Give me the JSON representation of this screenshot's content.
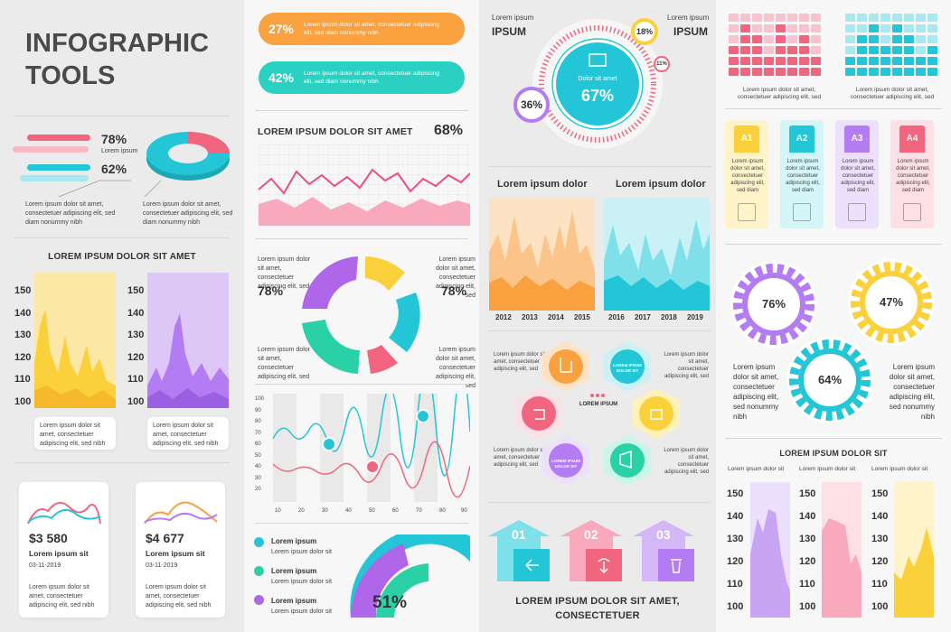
{
  "col1": {
    "title_line1": "INFOGRAPHIC",
    "title_line2": "TOOLS",
    "pct_a": "78%",
    "pct_a_caption": "Lorem ipsum",
    "pct_b": "62%",
    "note_left": "Lorem ipsum dolor sit amet, consectetuer adipiscing elit, sed diam nonummy nibh",
    "note_right": "Lorem ipsum dolor sit amet, consectetuer adipiscing elit, sed diam nonummy nibh",
    "section_title": "LOREM IPSUM DOLOR SIT AMET",
    "yticks": [
      "150",
      "140",
      "130",
      "120",
      "110",
      "100"
    ],
    "chart_note_left": "Lorem ipsum dolor sit amet, consectetuer adipiscing elit, sed nibh",
    "chart_note_right": "Lorem ipsum dolor sit amet, consectetuer adipiscing elit, sed nibh",
    "cards": [
      {
        "value": "$3 580",
        "label": "Lorem ipsum sit",
        "date": "03-11-2019",
        "text": "Lorem ipsum dolor sit amet, consectetuer adipiscing elit, sed nibh"
      },
      {
        "value": "$4 677",
        "label": "Lorem ipsum sit",
        "date": "03-11-2019",
        "text": "Lorem ipsum dolor sit amet, consectetuer adipiscing elit, sed nibh"
      }
    ],
    "colors": {
      "pink": "#f2657f",
      "cyan": "#23c6d6",
      "yellow": "#fbd13b",
      "purple": "#b47cf2"
    }
  },
  "col2": {
    "pills": [
      {
        "pct": "27%",
        "text": "Lorem ipsum dolor sit amet, consectetuer adipiscing elit, sed diam nonummy nibh",
        "color": "#f9a03f"
      },
      {
        "pct": "42%",
        "text": "Lorem ipsum dolor sit amet, consectetuer adipiscing elit, sed diam nonummy nibh",
        "color": "#2ad1c3"
      }
    ],
    "section_title": "LOREM IPSUM DOLOR SIT AMET",
    "section_pct": "68%",
    "donut_left_pct": "78%",
    "donut_right_pct": "78%",
    "donut_tl": "Lorem ipsum dolor sit amet, consectetuer adipiscing elit, sed",
    "donut_tr": "Lorem ipsum dolor sit amet, consectetuer adipiscing elit, sed",
    "donut_bl": "Lorem ipsum dolor sit amet, consectetuer adipiscing elit, sed",
    "donut_br": "Lorem ipsum dolor sit amet, consectetuer adipiscing elit, sed",
    "line_yticks": [
      "100",
      "90",
      "80",
      "70",
      "60",
      "50",
      "40",
      "30",
      "20"
    ],
    "line_xticks": [
      "10",
      "20",
      "30",
      "40",
      "50",
      "60",
      "70",
      "80",
      "90"
    ],
    "legend": [
      {
        "title": "Lorem ipsum",
        "sub": "Lorem ipsum dolor sit",
        "color": "#23c6d6"
      },
      {
        "title": "Lorem ipsum",
        "sub": "Lorem ipsum dolor sit",
        "color": "#2ad1a6"
      },
      {
        "title": "Lorem ipsum",
        "sub": "Lorem ipsum dolor sit",
        "color": "#b066e8"
      }
    ],
    "gauge_pct": "51%"
  },
  "col3": {
    "left_label_top": "Lorem ipsum",
    "left_label_main": "IPSUM",
    "right_label_top": "Lorem ipsum",
    "right_label_main": "IPSUM",
    "center_caption": "Dolor sit amet",
    "center_pct": "67%",
    "bubble_a": "18%",
    "bubble_b": "11%",
    "bubble_c": "36%",
    "area_left_title": "Lorem ipsum dolor",
    "area_right_title": "Lorem ipsum dolor",
    "area_left_years": [
      "2012",
      "2013",
      "2014",
      "2015"
    ],
    "area_right_years": [
      "2016",
      "2017",
      "2018",
      "2019"
    ],
    "hex_center": "LOREM IPSUM",
    "hex_small_a": "LOREM IPSUM DOLOR SIT",
    "hex_small_b": "LOREM IPSUM DOLOR SIT",
    "hex_notes": [
      "Lorem ipsum dolor sit amet, consectetuer adipiscing elit, sed",
      "Lorem ipsum dolor sit amet, consectetuer adipiscing elit, sed",
      "Lorem ipsum dolor sit amet, consectetuer adipiscing elit, sed",
      "Lorem ipsum dolor sit amet, consectetuer adipiscing elit, sed"
    ],
    "arrows": [
      "01",
      "02",
      "03"
    ],
    "footer_line1": "LOREM IPSUM DOLOR SIT AMET,",
    "footer_line2": "CONSECTETUER"
  },
  "col4": {
    "bar_note_left": "Lorem ipsum dolor sit amet, consectetuer adipiscing elit, sed",
    "bar_note_right": "Lorem ipsum dolor sit amet, consectetuer adipiscing elit, sed",
    "badges": [
      {
        "tag": "A1",
        "text": "Lorem ipsum dolor sit amet, consectetuer adipiscing elit, sed diam",
        "color": "#fbd13b",
        "bg": "#fff4c9"
      },
      {
        "tag": "A2",
        "text": "Lorem ipsum dolor sit amet, consectetuer adipiscing elit, sed diam",
        "color": "#23c6d6",
        "bg": "#d4f6f8"
      },
      {
        "tag": "A3",
        "text": "Lorem ipsum dolor sit amet, consectetuer adipiscing elit, sed diam",
        "color": "#b47cf2",
        "bg": "#ece0fc"
      },
      {
        "tag": "A4",
        "text": "Lorem ipsum dolor sit amet, consectetuer adipiscing elit, sed diam",
        "color": "#f2657f",
        "bg": "#fde0e6"
      }
    ],
    "gear_a": "76%",
    "gear_b": "47%",
    "gear_c": "64%",
    "gear_note_left": "Lorem ipsum dolor sit amet, consectetuer adipiscing elit, sed nonummy nibh",
    "gear_note_right": "Lorem ipsum dolor sit amet, consectetuer adipiscing elit, sed nonummy nibh",
    "section_title": "LOREM IPSUM DOLOR SIT",
    "mini_labels": [
      "Lorem ipsum dolor sit",
      "Lorem ipsum dolor sit",
      "Lorem ipsum dolor sit"
    ],
    "yticks": [
      "150",
      "140",
      "130",
      "120",
      "110",
      "100"
    ]
  }
}
